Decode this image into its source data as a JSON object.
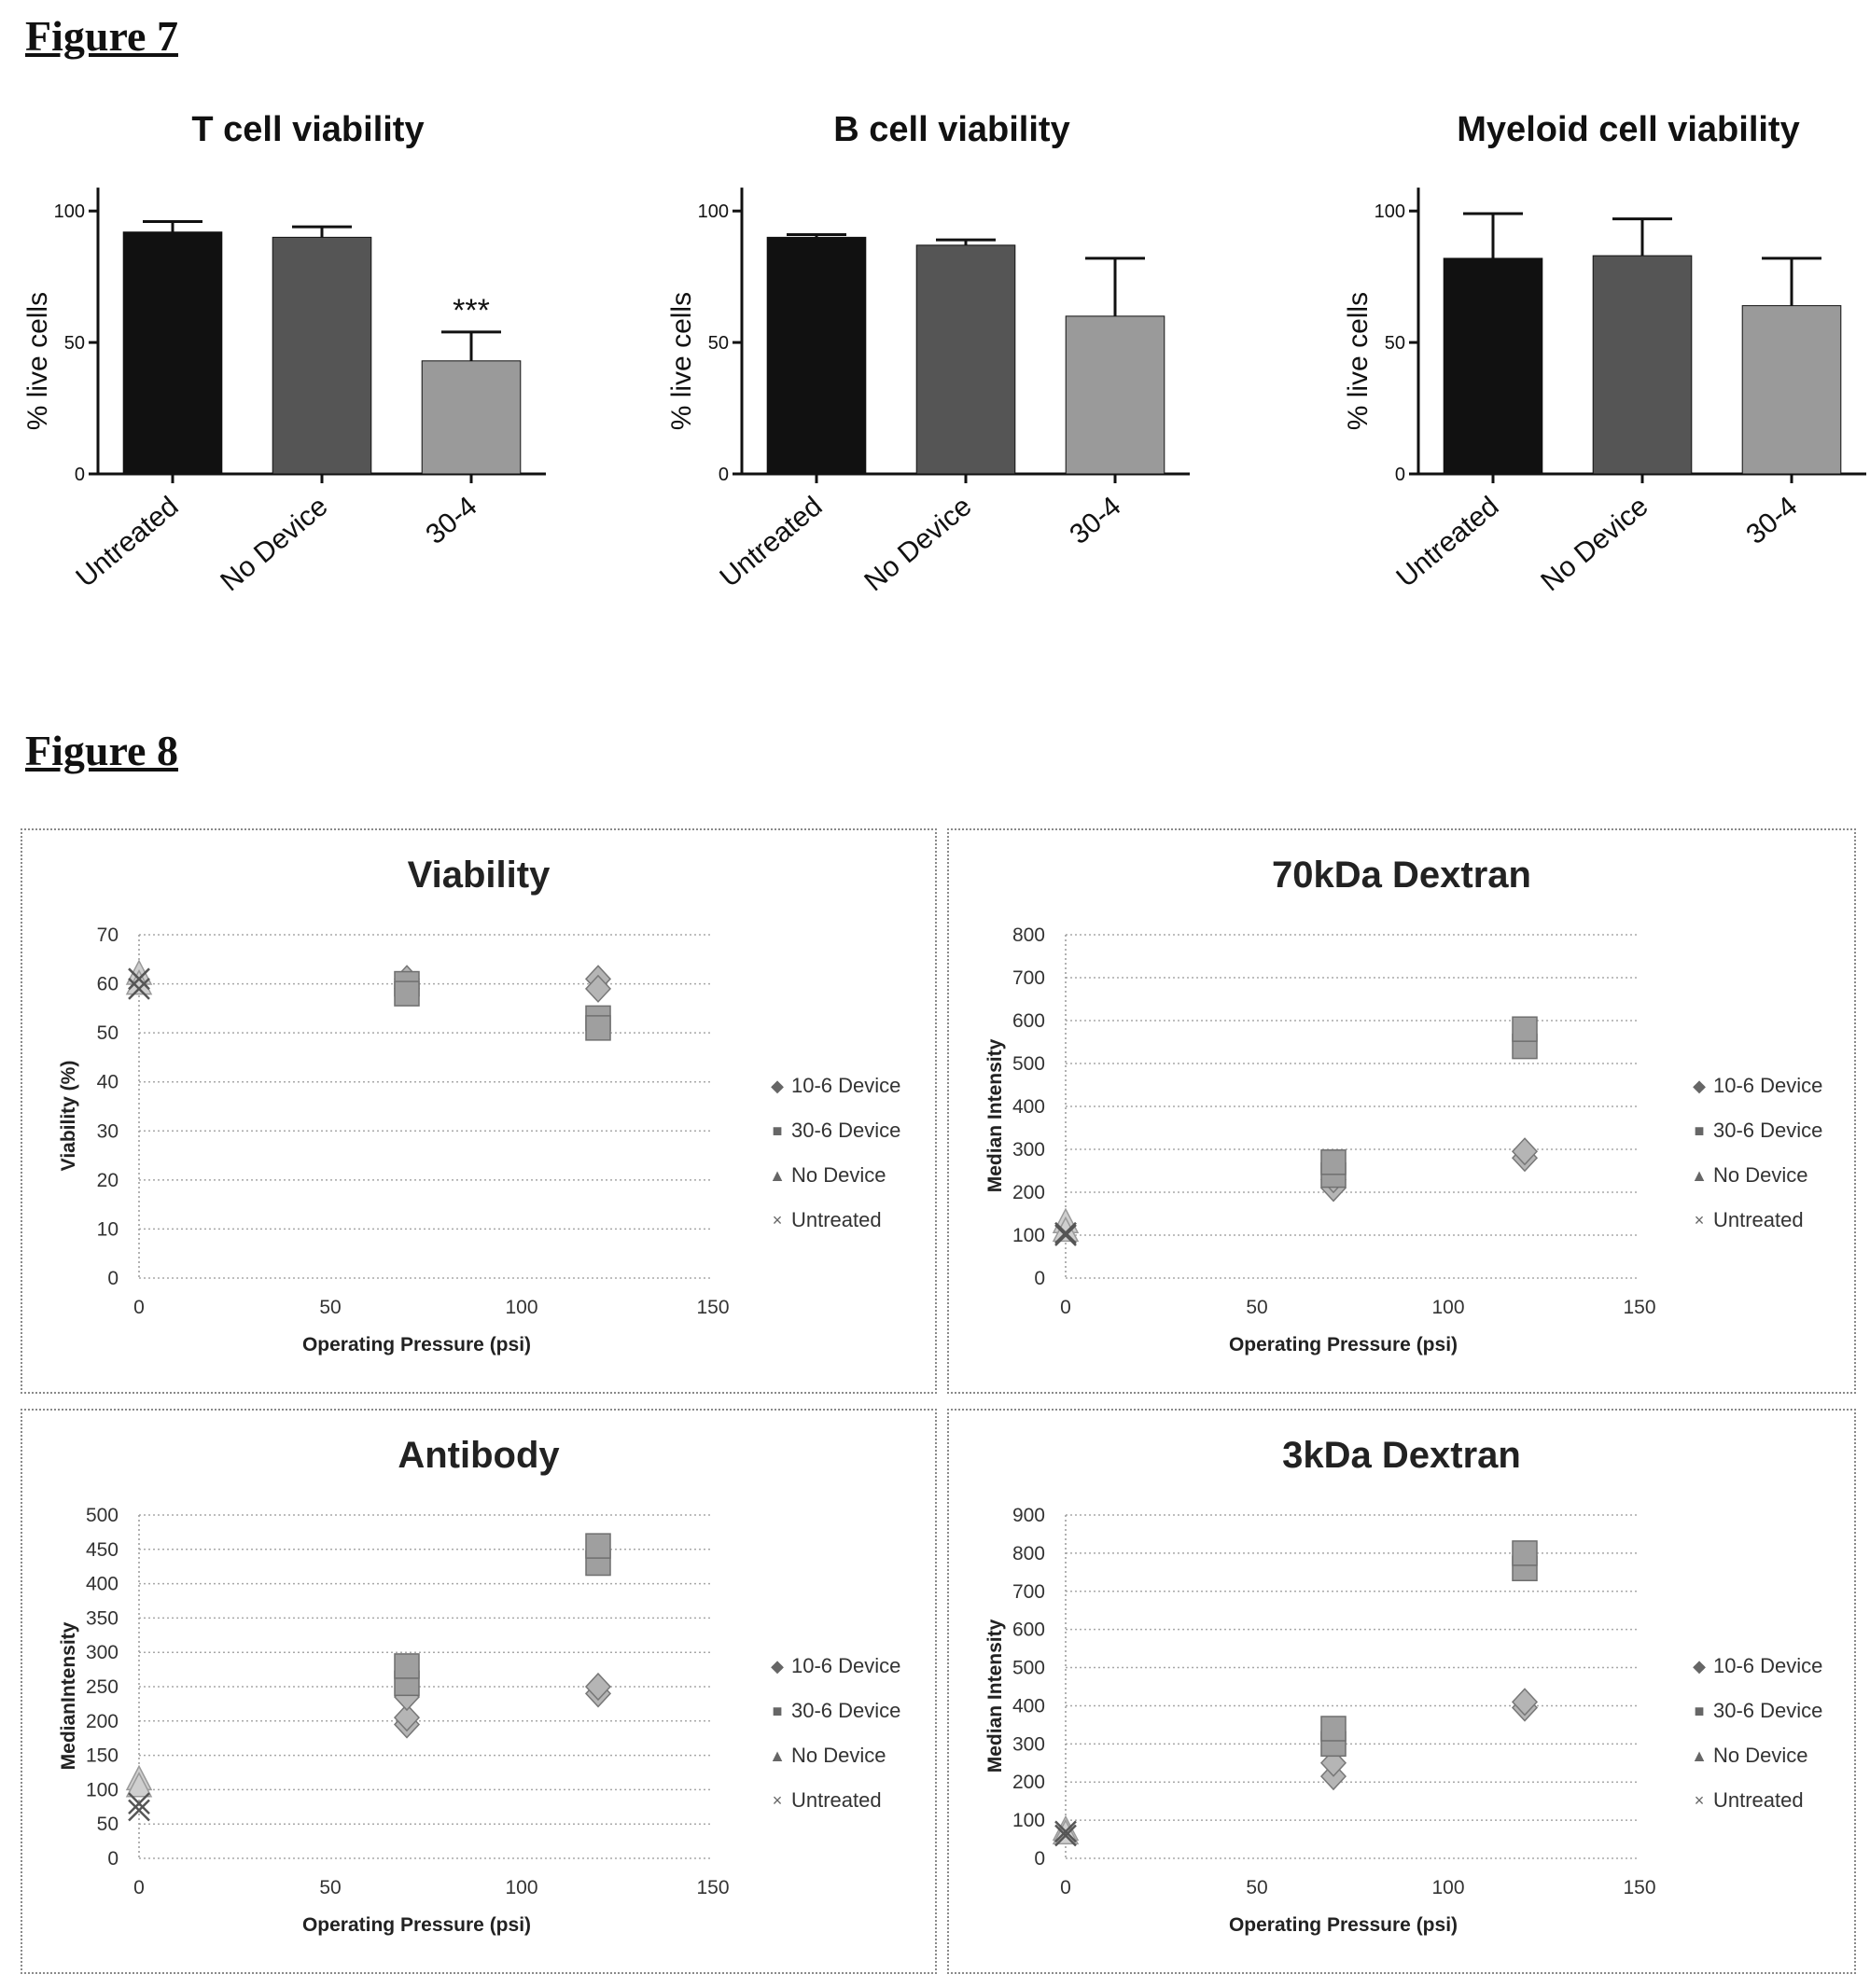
{
  "figure7": {
    "heading": "Figure 7",
    "charts": [
      {
        "title": "T cell viability",
        "ylabel": "% live cells",
        "ticks": [
          "0",
          "50",
          "100"
        ],
        "significance": "***"
      },
      {
        "title": "B cell viability",
        "ylabel": "% live cells",
        "ticks": [
          "0",
          "50",
          "100"
        ],
        "significance": ""
      },
      {
        "title": "Myeloid cell viability",
        "ylabel": "% live cells",
        "ticks": [
          "0",
          "50",
          "100"
        ],
        "significance": ""
      }
    ]
  },
  "figure8": {
    "heading": "Figure 8",
    "charts": [
      {
        "title": "Viability",
        "xlabel": "Operating Pressure (psi)",
        "ylabel": "Viability (%)",
        "xticks": [
          "0",
          "50",
          "100",
          "150"
        ],
        "yticks": [
          "0",
          "10",
          "20",
          "30",
          "40",
          "50",
          "60",
          "70"
        ]
      },
      {
        "title": "70kDa Dextran",
        "xlabel": "Operating Pressure (psi)",
        "ylabel": "Median Intensity",
        "xticks": [
          "0",
          "50",
          "100",
          "150"
        ],
        "yticks": [
          "0",
          "100",
          "200",
          "300",
          "400",
          "500",
          "600",
          "700",
          "800"
        ]
      },
      {
        "title": "Antibody",
        "xlabel": "Operating Pressure (psi)",
        "ylabel": "MedianIntensity",
        "xticks": [
          "0",
          "50",
          "100",
          "150"
        ],
        "yticks": [
          "0",
          "50",
          "100",
          "150",
          "200",
          "250",
          "300",
          "350",
          "400",
          "450",
          "500"
        ]
      },
      {
        "title": "3kDa Dextran",
        "xlabel": "Operating Pressure (psi)",
        "ylabel": "Median Intensity",
        "xticks": [
          "0",
          "50",
          "100",
          "150"
        ],
        "yticks": [
          "0",
          "100",
          "200",
          "300",
          "400",
          "500",
          "600",
          "700",
          "800",
          "900"
        ]
      }
    ],
    "legend": [
      "10-6 Device",
      "30-6 Device",
      "No Device",
      "Untreated"
    ]
  },
  "chart_data": [
    {
      "type": "bar",
      "title": "T cell viability",
      "ylabel": "% live cells",
      "categories": [
        "Untreated",
        "No Device",
        "30-4"
      ],
      "values": [
        92,
        90,
        43
      ],
      "errors": [
        4,
        4,
        11
      ],
      "ylim": [
        0,
        110
      ],
      "colors": [
        "#111111",
        "#555555",
        "#9a9a9a"
      ]
    },
    {
      "type": "bar",
      "title": "B cell viability",
      "ylabel": "% live cells",
      "categories": [
        "Untreated",
        "No Device",
        "30-4"
      ],
      "values": [
        90,
        87,
        60
      ],
      "errors": [
        1,
        2,
        22
      ],
      "ylim": [
        0,
        110
      ],
      "colors": [
        "#111111",
        "#555555",
        "#9a9a9a"
      ]
    },
    {
      "type": "bar",
      "title": "Myeloid cell viability",
      "ylabel": "% live cells",
      "categories": [
        "Untreated",
        "No Device",
        "30-4"
      ],
      "values": [
        82,
        83,
        64
      ],
      "errors": [
        17,
        14,
        18
      ],
      "ylim": [
        0,
        110
      ],
      "colors": [
        "#111111",
        "#555555",
        "#9a9a9a"
      ]
    },
    {
      "type": "scatter",
      "title": "Viability",
      "xlabel": "Operating Pressure (psi)",
      "ylabel": "Viability (%)",
      "xlim": [
        0,
        150
      ],
      "ylim": [
        0,
        70
      ],
      "series": [
        {
          "name": "10-6 Device",
          "marker": "diamond",
          "points": [
            [
              70,
              61
            ],
            [
              70,
              59
            ],
            [
              120,
              61
            ],
            [
              120,
              59
            ]
          ]
        },
        {
          "name": "30-6 Device",
          "marker": "square",
          "points": [
            [
              70,
              60
            ],
            [
              70,
              58
            ],
            [
              120,
              53
            ],
            [
              120,
              51
            ]
          ]
        },
        {
          "name": "No Device",
          "marker": "triangle",
          "points": [
            [
              0,
              62
            ],
            [
              0,
              60
            ]
          ]
        },
        {
          "name": "Untreated",
          "marker": "x",
          "points": [
            [
              0,
              61
            ],
            [
              0,
              59
            ]
          ]
        }
      ]
    },
    {
      "type": "scatter",
      "title": "70kDa Dextran",
      "xlabel": "Operating Pressure (psi)",
      "ylabel": "Median Intensity",
      "xlim": [
        0,
        150
      ],
      "ylim": [
        0,
        800
      ],
      "series": [
        {
          "name": "10-6 Device",
          "marker": "diamond",
          "points": [
            [
              70,
              210
            ],
            [
              70,
              230
            ],
            [
              120,
              280
            ],
            [
              120,
              295
            ]
          ]
        },
        {
          "name": "30-6 Device",
          "marker": "square",
          "points": [
            [
              70,
              240
            ],
            [
              70,
              270
            ],
            [
              120,
              540
            ],
            [
              120,
              580
            ]
          ]
        },
        {
          "name": "No Device",
          "marker": "triangle",
          "points": [
            [
              0,
              130
            ],
            [
              0,
              110
            ]
          ]
        },
        {
          "name": "Untreated",
          "marker": "x",
          "points": [
            [
              0,
              105
            ],
            [
              0,
              100
            ]
          ]
        }
      ]
    },
    {
      "type": "scatter",
      "title": "Antibody",
      "xlabel": "Operating Pressure (psi)",
      "ylabel": "MedianIntensity",
      "xlim": [
        0,
        150
      ],
      "ylim": [
        0,
        500
      ],
      "series": [
        {
          "name": "10-6 Device",
          "marker": "diamond",
          "points": [
            [
              70,
              195
            ],
            [
              70,
              205
            ],
            [
              70,
              235
            ],
            [
              120,
              240
            ],
            [
              120,
              250
            ]
          ]
        },
        {
          "name": "30-6 Device",
          "marker": "square",
          "points": [
            [
              70,
              255
            ],
            [
              70,
              280
            ],
            [
              120,
              430
            ],
            [
              120,
              455
            ]
          ]
        },
        {
          "name": "No Device",
          "marker": "triangle",
          "points": [
            [
              0,
              115
            ],
            [
              0,
              105
            ]
          ]
        },
        {
          "name": "Untreated",
          "marker": "x",
          "points": [
            [
              0,
              80
            ],
            [
              0,
              70
            ]
          ]
        }
      ]
    },
    {
      "type": "scatter",
      "title": "3kDa Dextran",
      "xlabel": "Operating Pressure (psi)",
      "ylabel": "Median Intensity",
      "xlim": [
        0,
        150
      ],
      "ylim": [
        0,
        900
      ],
      "series": [
        {
          "name": "10-6 Device",
          "marker": "diamond",
          "points": [
            [
              70,
              215
            ],
            [
              70,
              250
            ],
            [
              120,
              395
            ],
            [
              120,
              410
            ]
          ]
        },
        {
          "name": "30-6 Device",
          "marker": "square",
          "points": [
            [
              70,
              300
            ],
            [
              70,
              340
            ],
            [
              120,
              760
            ],
            [
              120,
              800
            ]
          ]
        },
        {
          "name": "No Device",
          "marker": "triangle",
          "points": [
            [
              0,
              75
            ],
            [
              0,
              65
            ]
          ]
        },
        {
          "name": "Untreated",
          "marker": "x",
          "points": [
            [
              0,
              70
            ],
            [
              0,
              60
            ]
          ]
        }
      ]
    }
  ]
}
